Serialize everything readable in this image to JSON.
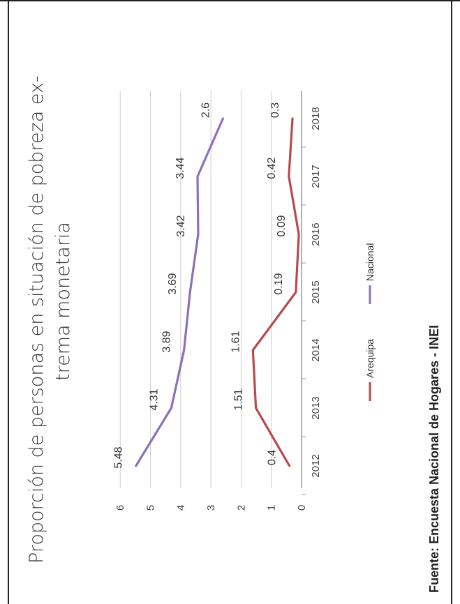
{
  "chart_data": {
    "type": "line",
    "title_line1": "Proporción de personas en situación de pobreza ex-",
    "title_line2": "trema monetaria",
    "source": "Fuente: Encuesta Nacional de Hogares - INEI",
    "categories": [
      "2012",
      "2013",
      "2014",
      "2015",
      "2016",
      "2017",
      "2018"
    ],
    "series": [
      {
        "name": "Arequipa",
        "color": "#b94a4a",
        "values": [
          0.4,
          1.51,
          1.61,
          0.19,
          0.09,
          0.42,
          0.3
        ]
      },
      {
        "name": "Nacional",
        "color": "#8a72b8",
        "values": [
          5.48,
          4.31,
          3.89,
          3.69,
          3.42,
          3.44,
          2.6
        ]
      }
    ],
    "value_labels": {
      "Arequipa": [
        "0.4",
        "1.51",
        "1.61",
        "0.19",
        "0.09",
        "0.42",
        "0.3"
      ],
      "Nacional": [
        "5.48",
        "4.31",
        "3.89",
        "3.69",
        "3.42",
        "3.44",
        "2.6"
      ]
    },
    "ylim": [
      0,
      6
    ],
    "yticks": [
      "0",
      "1",
      "2",
      "3",
      "4",
      "5",
      "6"
    ],
    "grid": true,
    "legend_position": "bottom",
    "orientation": "rotated 90 degrees counter-clockwise"
  }
}
